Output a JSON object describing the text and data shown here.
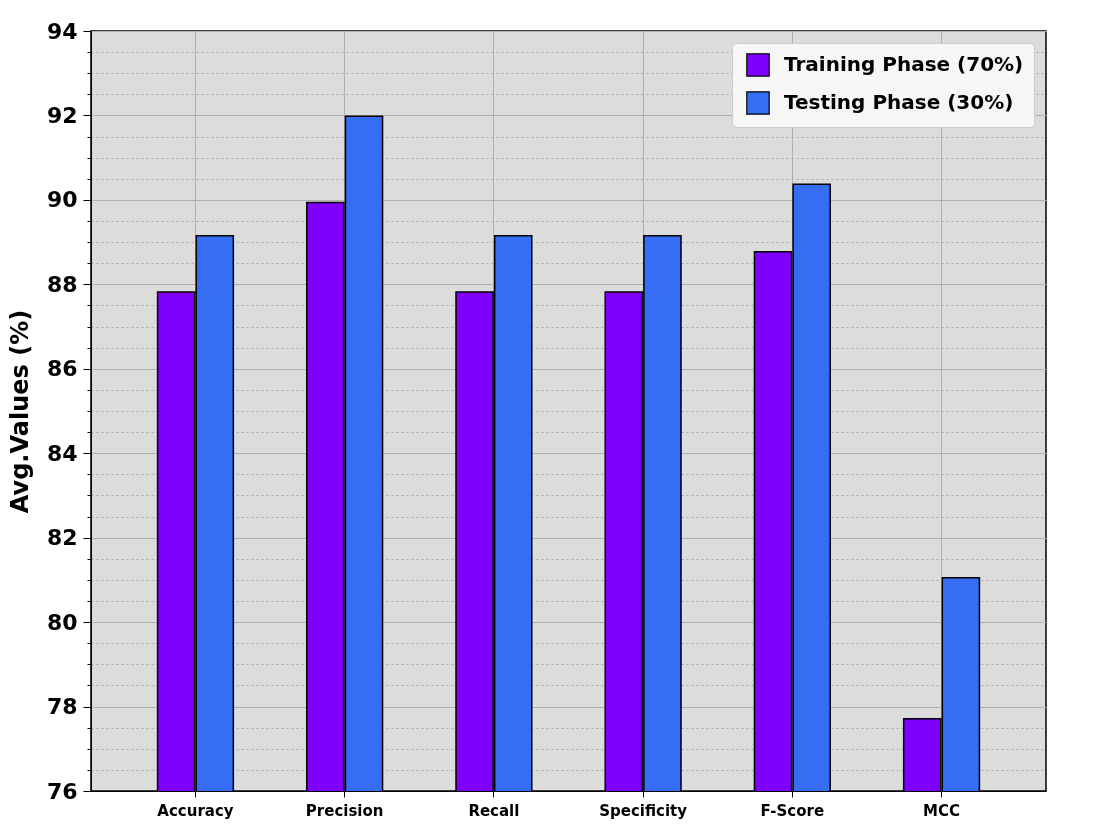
{
  "chart_data": {
    "type": "bar",
    "ylabel": "Avg.Values (%)",
    "categories": [
      "Accuracy",
      "Precision",
      "Recall",
      "Specificity",
      "F-Score",
      "MCC"
    ],
    "series": [
      {
        "name": "Training Phase (70%)",
        "color": "#7f00ff",
        "values": [
          87.82,
          89.94,
          87.82,
          87.82,
          88.77,
          77.71
        ]
      },
      {
        "name": "Testing Phase (30%)",
        "color": "#356ef5",
        "values": [
          89.15,
          91.98,
          89.15,
          89.15,
          90.37,
          81.05
        ]
      }
    ],
    "ylim": [
      76,
      94
    ],
    "yticks": [
      76,
      {
        "value": 76.5,
        "label": null
      },
      {
        "value": 77,
        "label": null
      },
      {
        "value": 77.5,
        "label": null
      },
      78,
      {
        "value": 78.5,
        "label": null
      },
      {
        "value": 79,
        "label": null
      },
      {
        "value": 79.5,
        "label": null
      },
      80,
      {
        "value": 80.5,
        "label": null
      },
      {
        "value": 81,
        "label": null
      },
      {
        "value": 81.5,
        "label": null
      },
      82,
      {
        "value": 82.5,
        "label": null
      },
      {
        "value": 83,
        "label": null
      },
      {
        "value": 83.5,
        "label": null
      },
      84,
      {
        "value": 84.5,
        "label": null
      },
      {
        "value": 85,
        "label": null
      },
      {
        "value": 85.5,
        "label": null
      },
      86,
      {
        "value": 86.5,
        "label": null
      },
      {
        "value": 87,
        "label": null
      },
      {
        "value": 87.5,
        "label": null
      },
      88,
      {
        "value": 88.5,
        "label": null
      },
      {
        "value": 89,
        "label": null
      },
      {
        "value": 89.5,
        "label": null
      },
      90,
      {
        "value": 90.5,
        "label": null
      },
      {
        "value": 91,
        "label": null
      },
      {
        "value": 91.5,
        "label": null
      },
      92,
      {
        "value": 92.5,
        "label": null
      },
      {
        "value": 93,
        "label": null
      },
      {
        "value": 93.5,
        "label": null
      },
      94
    ],
    "grid": true,
    "legend": "top right"
  }
}
